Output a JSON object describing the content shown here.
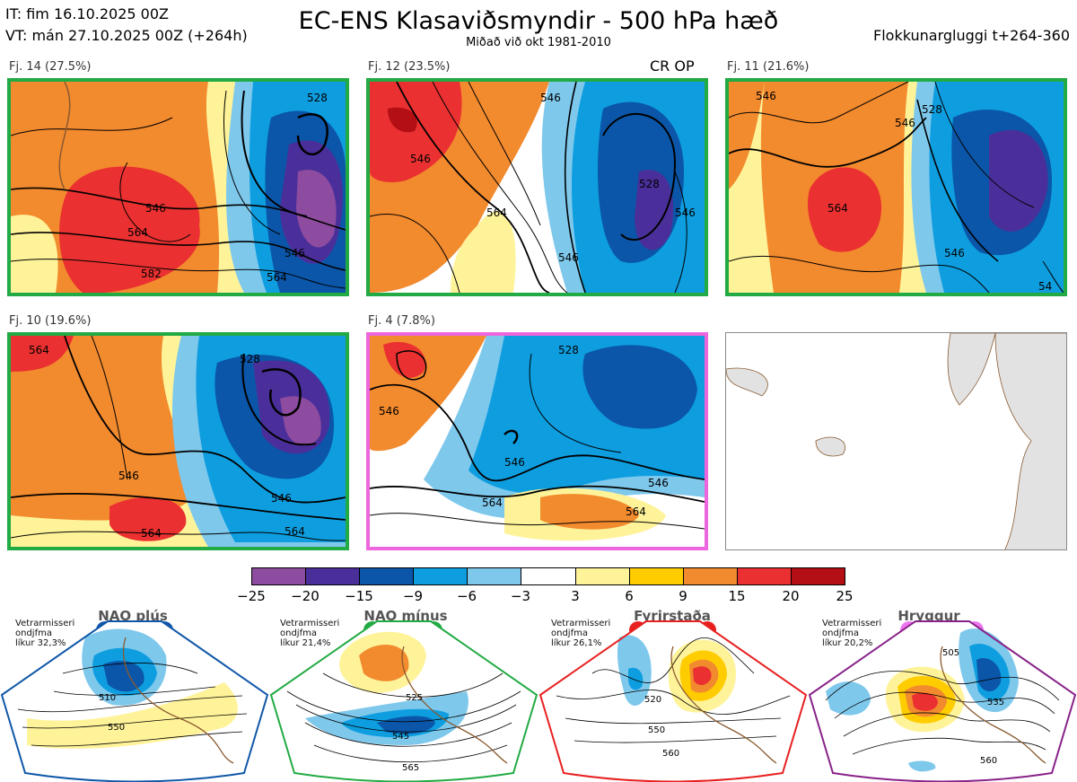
{
  "header": {
    "it_line": "IT: fim 16.10.2025 00Z",
    "vt_line": "VT: mán 27.10.2025 00Z  (+264h)",
    "title": "EC-ENS Klasaviðsmyndir - 500 hPa hæð",
    "subtitle": "Miðað við okt 1981-2010",
    "window": "Flokkunargluggi t+264-360"
  },
  "panels": [
    {
      "label": "Fj. 14 (27.5%)",
      "border_color": "#22aa44",
      "contours": [
        "546",
        "564",
        "582",
        "528",
        "546",
        "564"
      ]
    },
    {
      "label": "Fj. 12 (23.5%)",
      "border_color": "#22aa44",
      "extra": "CR OP",
      "contours": [
        "546",
        "546",
        "564",
        "546",
        "528",
        "546"
      ]
    },
    {
      "label": "Fj. 11 (21.6%)",
      "border_color": "#22aa44",
      "contours": [
        "546",
        "546",
        "564",
        "528",
        "546",
        "54"
      ]
    },
    {
      "label": "Fj. 10 (19.6%)",
      "border_color": "#22aa44",
      "contours": [
        "564",
        "528",
        "546",
        "546",
        "564",
        "564"
      ]
    },
    {
      "label": "Fj. 4 (7.8%)",
      "border_color": "#ee66dd",
      "contours": [
        "546",
        "528",
        "546",
        "546",
        "564",
        "564"
      ]
    }
  ],
  "colorbar": {
    "colors": [
      "#8e4ca0",
      "#4a2f9a",
      "#0b56a8",
      "#0e9ee0",
      "#7ec8ec",
      "#ffffff",
      "#fff39a",
      "#ffcc00",
      "#f28a2e",
      "#ea3030",
      "#b30f14"
    ],
    "ticks": [
      "−25",
      "−20",
      "−15",
      "−9",
      "−6",
      "−3",
      "3",
      "6",
      "9",
      "15",
      "20",
      "25"
    ]
  },
  "regimes": [
    {
      "name": "NAO plús",
      "note": [
        "Vetrarmisseri",
        "ondjfma",
        "líkur 32,3%"
      ],
      "color": "#1057a8",
      "contours": [
        "510",
        "550"
      ]
    },
    {
      "name": "NAO mínus",
      "note": [
        "Vetrarmisseri",
        "ondjfma",
        "líkur 21,4%"
      ],
      "color": "#22aa44",
      "contours": [
        "525",
        "545",
        "565"
      ]
    },
    {
      "name": "Fyrirstaða",
      "note": [
        "Vetrarmisseri",
        "ondjfma",
        "líkur 26,1%"
      ],
      "color": "#e82020",
      "contours": [
        "520",
        "550",
        "560"
      ]
    },
    {
      "name": "Hryggur",
      "note": [
        "Vetrarmisseri",
        "ondjfma",
        "líkur 20,2%"
      ],
      "color": "#ee77ee",
      "contours": [
        "505",
        "535",
        "560"
      ]
    }
  ]
}
